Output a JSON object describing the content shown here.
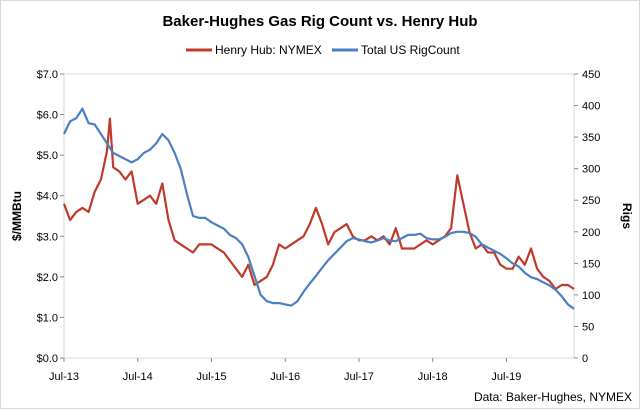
{
  "chart_data": {
    "type": "line",
    "title": "Baker-Hughes Gas Rig Count vs. Henry Hub",
    "source": "Data: Baker-Hughes, NYMEX",
    "x_ticks": [
      "Jul-13",
      "Jul-14",
      "Jul-15",
      "Jul-16",
      "Jul-17",
      "Jul-18",
      "Jul-19"
    ],
    "x_range": [
      "2013-07",
      "2020-06"
    ],
    "y_left": {
      "label": "$/MMBtu",
      "range": [
        0,
        7
      ],
      "ticks": [
        "$0.0",
        "$1.0",
        "$2.0",
        "$3.0",
        "$4.0",
        "$5.0",
        "$6.0",
        "$7.0"
      ]
    },
    "y_right": {
      "label": "Rigs",
      "range": [
        0,
        450
      ],
      "ticks": [
        "0",
        "50",
        "100",
        "150",
        "200",
        "250",
        "300",
        "350",
        "400",
        "450"
      ]
    },
    "legend_position": "top",
    "series": [
      {
        "name": "Henry Hub: NYMEX",
        "axis": "left",
        "color": "#c0392b",
        "points": [
          [
            "2013-07",
            3.8
          ],
          [
            "2013-08",
            3.4
          ],
          [
            "2013-09",
            3.6
          ],
          [
            "2013-10",
            3.7
          ],
          [
            "2013-11",
            3.6
          ],
          [
            "2013-12",
            4.1
          ],
          [
            "2014-01",
            4.4
          ],
          [
            "2014-02",
            5.1
          ],
          [
            "2014-02-15",
            5.9
          ],
          [
            "2014-03",
            4.7
          ],
          [
            "2014-04",
            4.6
          ],
          [
            "2014-05",
            4.4
          ],
          [
            "2014-06",
            4.6
          ],
          [
            "2014-07",
            3.8
          ],
          [
            "2014-08",
            3.9
          ],
          [
            "2014-09",
            4.0
          ],
          [
            "2014-10",
            3.8
          ],
          [
            "2014-11",
            4.3
          ],
          [
            "2014-12",
            3.4
          ],
          [
            "2015-01",
            2.9
          ],
          [
            "2015-02",
            2.8
          ],
          [
            "2015-03",
            2.7
          ],
          [
            "2015-04",
            2.6
          ],
          [
            "2015-05",
            2.8
          ],
          [
            "2015-06",
            2.8
          ],
          [
            "2015-07",
            2.8
          ],
          [
            "2015-08",
            2.7
          ],
          [
            "2015-09",
            2.6
          ],
          [
            "2015-10",
            2.4
          ],
          [
            "2015-11",
            2.2
          ],
          [
            "2015-12",
            2.0
          ],
          [
            "2016-01",
            2.3
          ],
          [
            "2016-02",
            1.8
          ],
          [
            "2016-03",
            1.9
          ],
          [
            "2016-04",
            2.0
          ],
          [
            "2016-05",
            2.3
          ],
          [
            "2016-06",
            2.8
          ],
          [
            "2016-07",
            2.7
          ],
          [
            "2016-08",
            2.8
          ],
          [
            "2016-09",
            2.9
          ],
          [
            "2016-10",
            3.0
          ],
          [
            "2016-11",
            3.3
          ],
          [
            "2016-12",
            3.7
          ],
          [
            "2017-01",
            3.3
          ],
          [
            "2017-02",
            2.8
          ],
          [
            "2017-03",
            3.1
          ],
          [
            "2017-04",
            3.2
          ],
          [
            "2017-05",
            3.3
          ],
          [
            "2017-06",
            3.0
          ],
          [
            "2017-07",
            2.9
          ],
          [
            "2017-08",
            2.9
          ],
          [
            "2017-09",
            3.0
          ],
          [
            "2017-10",
            2.9
          ],
          [
            "2017-11",
            3.0
          ],
          [
            "2017-12",
            2.8
          ],
          [
            "2018-01",
            3.2
          ],
          [
            "2018-02",
            2.7
          ],
          [
            "2018-03",
            2.7
          ],
          [
            "2018-04",
            2.7
          ],
          [
            "2018-05",
            2.8
          ],
          [
            "2018-06",
            2.9
          ],
          [
            "2018-07",
            2.8
          ],
          [
            "2018-08",
            2.9
          ],
          [
            "2018-09",
            3.0
          ],
          [
            "2018-10",
            3.2
          ],
          [
            "2018-11",
            4.5
          ],
          [
            "2018-12",
            3.8
          ],
          [
            "2019-01",
            3.1
          ],
          [
            "2019-02",
            2.7
          ],
          [
            "2019-03",
            2.8
          ],
          [
            "2019-04",
            2.6
          ],
          [
            "2019-05",
            2.6
          ],
          [
            "2019-06",
            2.3
          ],
          [
            "2019-07",
            2.2
          ],
          [
            "2019-08",
            2.2
          ],
          [
            "2019-09",
            2.5
          ],
          [
            "2019-10",
            2.3
          ],
          [
            "2019-11",
            2.7
          ],
          [
            "2019-12",
            2.2
          ],
          [
            "2020-01",
            2.0
          ],
          [
            "2020-02",
            1.9
          ],
          [
            "2020-03",
            1.7
          ],
          [
            "2020-04",
            1.8
          ],
          [
            "2020-05",
            1.8
          ],
          [
            "2020-06",
            1.7
          ]
        ]
      },
      {
        "name": "Total US RigCount",
        "axis": "right",
        "color": "#4a7fc1",
        "points": [
          [
            "2013-07",
            355
          ],
          [
            "2013-08",
            375
          ],
          [
            "2013-09",
            380
          ],
          [
            "2013-10",
            395
          ],
          [
            "2013-11",
            372
          ],
          [
            "2013-12",
            370
          ],
          [
            "2014-01",
            355
          ],
          [
            "2014-02",
            340
          ],
          [
            "2014-03",
            325
          ],
          [
            "2014-04",
            320
          ],
          [
            "2014-05",
            315
          ],
          [
            "2014-06",
            310
          ],
          [
            "2014-07",
            315
          ],
          [
            "2014-08",
            325
          ],
          [
            "2014-09",
            330
          ],
          [
            "2014-10",
            340
          ],
          [
            "2014-11",
            355
          ],
          [
            "2014-12",
            345
          ],
          [
            "2015-01",
            325
          ],
          [
            "2015-02",
            300
          ],
          [
            "2015-03",
            260
          ],
          [
            "2015-04",
            225
          ],
          [
            "2015-05",
            222
          ],
          [
            "2015-06",
            222
          ],
          [
            "2015-07",
            215
          ],
          [
            "2015-08",
            210
          ],
          [
            "2015-09",
            205
          ],
          [
            "2015-10",
            195
          ],
          [
            "2015-11",
            190
          ],
          [
            "2015-12",
            180
          ],
          [
            "2016-01",
            160
          ],
          [
            "2016-02",
            130
          ],
          [
            "2016-03",
            100
          ],
          [
            "2016-04",
            90
          ],
          [
            "2016-05",
            87
          ],
          [
            "2016-06",
            87
          ],
          [
            "2016-07",
            85
          ],
          [
            "2016-08",
            83
          ],
          [
            "2016-09",
            90
          ],
          [
            "2016-10",
            105
          ],
          [
            "2016-11",
            118
          ],
          [
            "2016-12",
            130
          ],
          [
            "2017-01",
            143
          ],
          [
            "2017-02",
            155
          ],
          [
            "2017-03",
            165
          ],
          [
            "2017-04",
            175
          ],
          [
            "2017-05",
            185
          ],
          [
            "2017-06",
            190
          ],
          [
            "2017-07",
            188
          ],
          [
            "2017-08",
            185
          ],
          [
            "2017-09",
            183
          ],
          [
            "2017-10",
            186
          ],
          [
            "2017-11",
            190
          ],
          [
            "2017-12",
            186
          ],
          [
            "2018-01",
            185
          ],
          [
            "2018-02",
            190
          ],
          [
            "2018-03",
            195
          ],
          [
            "2018-04",
            195
          ],
          [
            "2018-05",
            197
          ],
          [
            "2018-06",
            190
          ],
          [
            "2018-07",
            188
          ],
          [
            "2018-08",
            188
          ],
          [
            "2018-09",
            192
          ],
          [
            "2018-10",
            198
          ],
          [
            "2018-11",
            200
          ],
          [
            "2018-12",
            200
          ],
          [
            "2019-01",
            198
          ],
          [
            "2019-02",
            192
          ],
          [
            "2019-03",
            180
          ],
          [
            "2019-04",
            175
          ],
          [
            "2019-05",
            170
          ],
          [
            "2019-06",
            165
          ],
          [
            "2019-07",
            158
          ],
          [
            "2019-08",
            150
          ],
          [
            "2019-09",
            145
          ],
          [
            "2019-10",
            135
          ],
          [
            "2019-11",
            128
          ],
          [
            "2019-12",
            125
          ],
          [
            "2020-01",
            120
          ],
          [
            "2020-02",
            115
          ],
          [
            "2020-03",
            108
          ],
          [
            "2020-04",
            98
          ],
          [
            "2020-05",
            85
          ],
          [
            "2020-06",
            78
          ]
        ]
      }
    ]
  }
}
